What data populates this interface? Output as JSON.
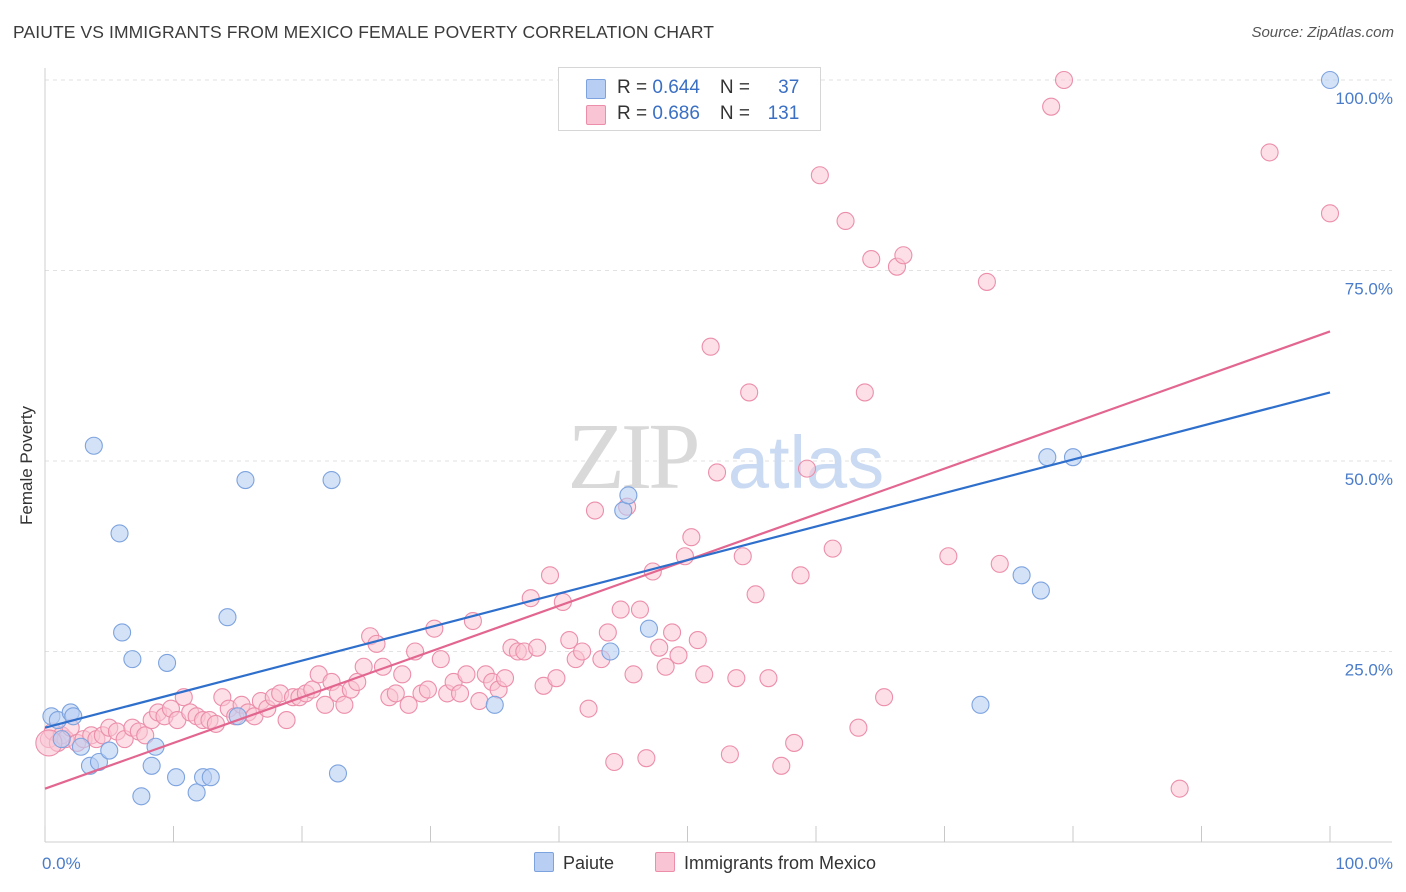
{
  "header": {
    "title": "PAIUTE VS IMMIGRANTS FROM MEXICO FEMALE POVERTY CORRELATION CHART",
    "source": "Source: ZipAtlas.com"
  },
  "watermark": {
    "zip": "ZIP",
    "atlas": "atlas"
  },
  "colors": {
    "blue_fill": "#b8cff3",
    "blue_stroke": "#7da3df",
    "blue_line": "#2f6fcc",
    "pink_fill": "#f9c4d4",
    "pink_stroke": "#ec8eaa",
    "pink_line": "#e2668f",
    "tick_label": "#4a7cc9"
  },
  "legend": {
    "rows": [
      {
        "r_label": "R = ",
        "r_value": "0.644",
        "n_label": "N = ",
        "n_value": "37"
      },
      {
        "r_label": "R = ",
        "r_value": "0.686",
        "n_label": "N = ",
        "n_value": "131"
      }
    ]
  },
  "bottom_legend": {
    "paiute": "Paiute",
    "mexico": "Immigrants from Mexico"
  },
  "chart_data": {
    "type": "scatter",
    "title": "PAIUTE VS IMMIGRANTS FROM MEXICO FEMALE POVERTY CORRELATION CHART",
    "xlabel": "",
    "ylabel": "Female Poverty",
    "xlim": [
      0,
      100
    ],
    "ylim": [
      0,
      105
    ],
    "x_tick_labels": [
      "0.0%",
      "100.0%"
    ],
    "y_ticks": [
      {
        "value": 25,
        "label": "25.0%"
      },
      {
        "value": 50,
        "label": "50.0%"
      },
      {
        "value": 75,
        "label": "75.0%"
      },
      {
        "value": 100,
        "label": "100.0%"
      }
    ],
    "grid": true,
    "series": [
      {
        "name": "Paiute",
        "r": 0.644,
        "n": 37,
        "trend": {
          "x0": 0,
          "y0": 15.0,
          "x1": 100,
          "y1": 59.0
        },
        "points": [
          [
            0.5,
            16.5
          ],
          [
            1,
            16
          ],
          [
            2,
            17
          ],
          [
            2.2,
            16.5
          ],
          [
            1.3,
            13.5
          ],
          [
            2.8,
            12.5
          ],
          [
            3.5,
            10
          ],
          [
            4.2,
            10.5
          ],
          [
            5,
            12
          ],
          [
            5.8,
            40.5
          ],
          [
            6,
            27.5
          ],
          [
            6.8,
            24
          ],
          [
            7.5,
            6
          ],
          [
            8.3,
            10
          ],
          [
            8.6,
            12.5
          ],
          [
            9.5,
            23.5
          ],
          [
            10.2,
            8.5
          ],
          [
            11.8,
            6.5
          ],
          [
            12.3,
            8.5
          ],
          [
            12.9,
            8.5
          ],
          [
            14.2,
            29.5
          ],
          [
            15,
            16.5
          ],
          [
            15.6,
            47.5
          ],
          [
            22.3,
            47.5
          ],
          [
            22.8,
            9
          ],
          [
            3.8,
            52
          ],
          [
            35,
            18
          ],
          [
            45,
            43.5
          ],
          [
            45.4,
            45.5
          ],
          [
            47,
            28
          ],
          [
            44,
            25
          ],
          [
            72.8,
            18
          ],
          [
            76,
            35
          ],
          [
            77.5,
            33
          ],
          [
            80,
            50.5
          ],
          [
            78,
            50.5
          ],
          [
            100,
            100
          ]
        ]
      },
      {
        "name": "Immigrants from Mexico",
        "r": 0.686,
        "n": 131,
        "trend": {
          "x0": 0,
          "y0": 7.0,
          "x1": 100,
          "y1": 67.0
        },
        "points": [
          [
            0.3,
            13.5
          ],
          [
            0.6,
            14.5
          ],
          [
            1,
            13
          ],
          [
            1.3,
            14
          ],
          [
            1.6,
            13.5
          ],
          [
            2,
            15
          ],
          [
            2.5,
            13
          ],
          [
            3,
            13.5
          ],
          [
            3.6,
            14
          ],
          [
            4,
            13.5
          ],
          [
            4.5,
            14
          ],
          [
            5,
            15
          ],
          [
            5.6,
            14.5
          ],
          [
            6.2,
            13.5
          ],
          [
            6.8,
            15
          ],
          [
            7.3,
            14.5
          ],
          [
            7.8,
            14
          ],
          [
            8.3,
            16
          ],
          [
            8.8,
            17
          ],
          [
            9.3,
            16.5
          ],
          [
            9.8,
            17.5
          ],
          [
            10.3,
            16
          ],
          [
            10.8,
            19
          ],
          [
            11.3,
            17
          ],
          [
            11.8,
            16.5
          ],
          [
            12.3,
            16
          ],
          [
            12.8,
            16
          ],
          [
            13.3,
            15.5
          ],
          [
            13.8,
            19
          ],
          [
            14.3,
            17.5
          ],
          [
            14.8,
            16.5
          ],
          [
            15.3,
            18
          ],
          [
            15.8,
            17
          ],
          [
            16.3,
            16.5
          ],
          [
            16.8,
            18.5
          ],
          [
            17.3,
            17.5
          ],
          [
            17.8,
            19
          ],
          [
            18.3,
            19.5
          ],
          [
            18.8,
            16
          ],
          [
            19.3,
            19
          ],
          [
            19.8,
            19
          ],
          [
            20.3,
            19.5
          ],
          [
            20.8,
            20
          ],
          [
            21.3,
            22
          ],
          [
            21.8,
            18
          ],
          [
            22.3,
            21
          ],
          [
            22.8,
            19.5
          ],
          [
            23.3,
            18
          ],
          [
            23.8,
            20
          ],
          [
            24.3,
            21
          ],
          [
            24.8,
            23
          ],
          [
            25.3,
            27
          ],
          [
            25.8,
            26
          ],
          [
            26.3,
            23
          ],
          [
            26.8,
            19
          ],
          [
            27.3,
            19.5
          ],
          [
            27.8,
            22
          ],
          [
            28.3,
            18
          ],
          [
            28.8,
            25
          ],
          [
            29.3,
            19.5
          ],
          [
            29.8,
            20
          ],
          [
            30.3,
            28
          ],
          [
            30.8,
            24
          ],
          [
            31.3,
            19.5
          ],
          [
            31.8,
            21
          ],
          [
            32.3,
            19.5
          ],
          [
            32.8,
            22
          ],
          [
            33.3,
            29
          ],
          [
            33.8,
            18.5
          ],
          [
            34.3,
            22
          ],
          [
            34.8,
            21
          ],
          [
            35.3,
            20
          ],
          [
            35.8,
            21.5
          ],
          [
            36.3,
            25.5
          ],
          [
            36.8,
            25
          ],
          [
            37.3,
            25
          ],
          [
            37.8,
            32
          ],
          [
            38.3,
            25.5
          ],
          [
            38.8,
            20.5
          ],
          [
            39.3,
            35
          ],
          [
            39.8,
            21.5
          ],
          [
            40.3,
            31.5
          ],
          [
            40.8,
            26.5
          ],
          [
            41.3,
            24
          ],
          [
            41.8,
            25
          ],
          [
            42.3,
            17.5
          ],
          [
            42.8,
            43.5
          ],
          [
            43.3,
            24
          ],
          [
            43.8,
            27.5
          ],
          [
            44.3,
            10.5
          ],
          [
            44.8,
            30.5
          ],
          [
            45.3,
            44
          ],
          [
            45.8,
            22
          ],
          [
            46.3,
            30.5
          ],
          [
            46.8,
            11
          ],
          [
            47.3,
            35.5
          ],
          [
            47.8,
            25.5
          ],
          [
            48.3,
            23
          ],
          [
            48.8,
            27.5
          ],
          [
            49.3,
            24.5
          ],
          [
            49.8,
            37.5
          ],
          [
            50.3,
            40
          ],
          [
            50.8,
            26.5
          ],
          [
            51.3,
            22
          ],
          [
            51.8,
            65
          ],
          [
            52.3,
            48.5
          ],
          [
            53.3,
            11.5
          ],
          [
            53.8,
            21.5
          ],
          [
            54.3,
            37.5
          ],
          [
            54.8,
            59
          ],
          [
            55.3,
            32.5
          ],
          [
            56.3,
            21.5
          ],
          [
            57.3,
            10
          ],
          [
            58.3,
            13
          ],
          [
            58.8,
            35
          ],
          [
            59.3,
            49
          ],
          [
            60.3,
            87.5
          ],
          [
            61.3,
            38.5
          ],
          [
            62.3,
            81.5
          ],
          [
            63.3,
            15
          ],
          [
            63.8,
            59
          ],
          [
            64.3,
            76.5
          ],
          [
            65.3,
            19
          ],
          [
            66.3,
            75.5
          ],
          [
            66.8,
            77
          ],
          [
            70.3,
            37.5
          ],
          [
            73.3,
            73.5
          ],
          [
            74.3,
            36.5
          ],
          [
            78.3,
            96.5
          ],
          [
            79.3,
            100
          ],
          [
            88.3,
            7
          ],
          [
            95.3,
            90.5
          ],
          [
            100,
            82.5
          ]
        ]
      }
    ]
  }
}
